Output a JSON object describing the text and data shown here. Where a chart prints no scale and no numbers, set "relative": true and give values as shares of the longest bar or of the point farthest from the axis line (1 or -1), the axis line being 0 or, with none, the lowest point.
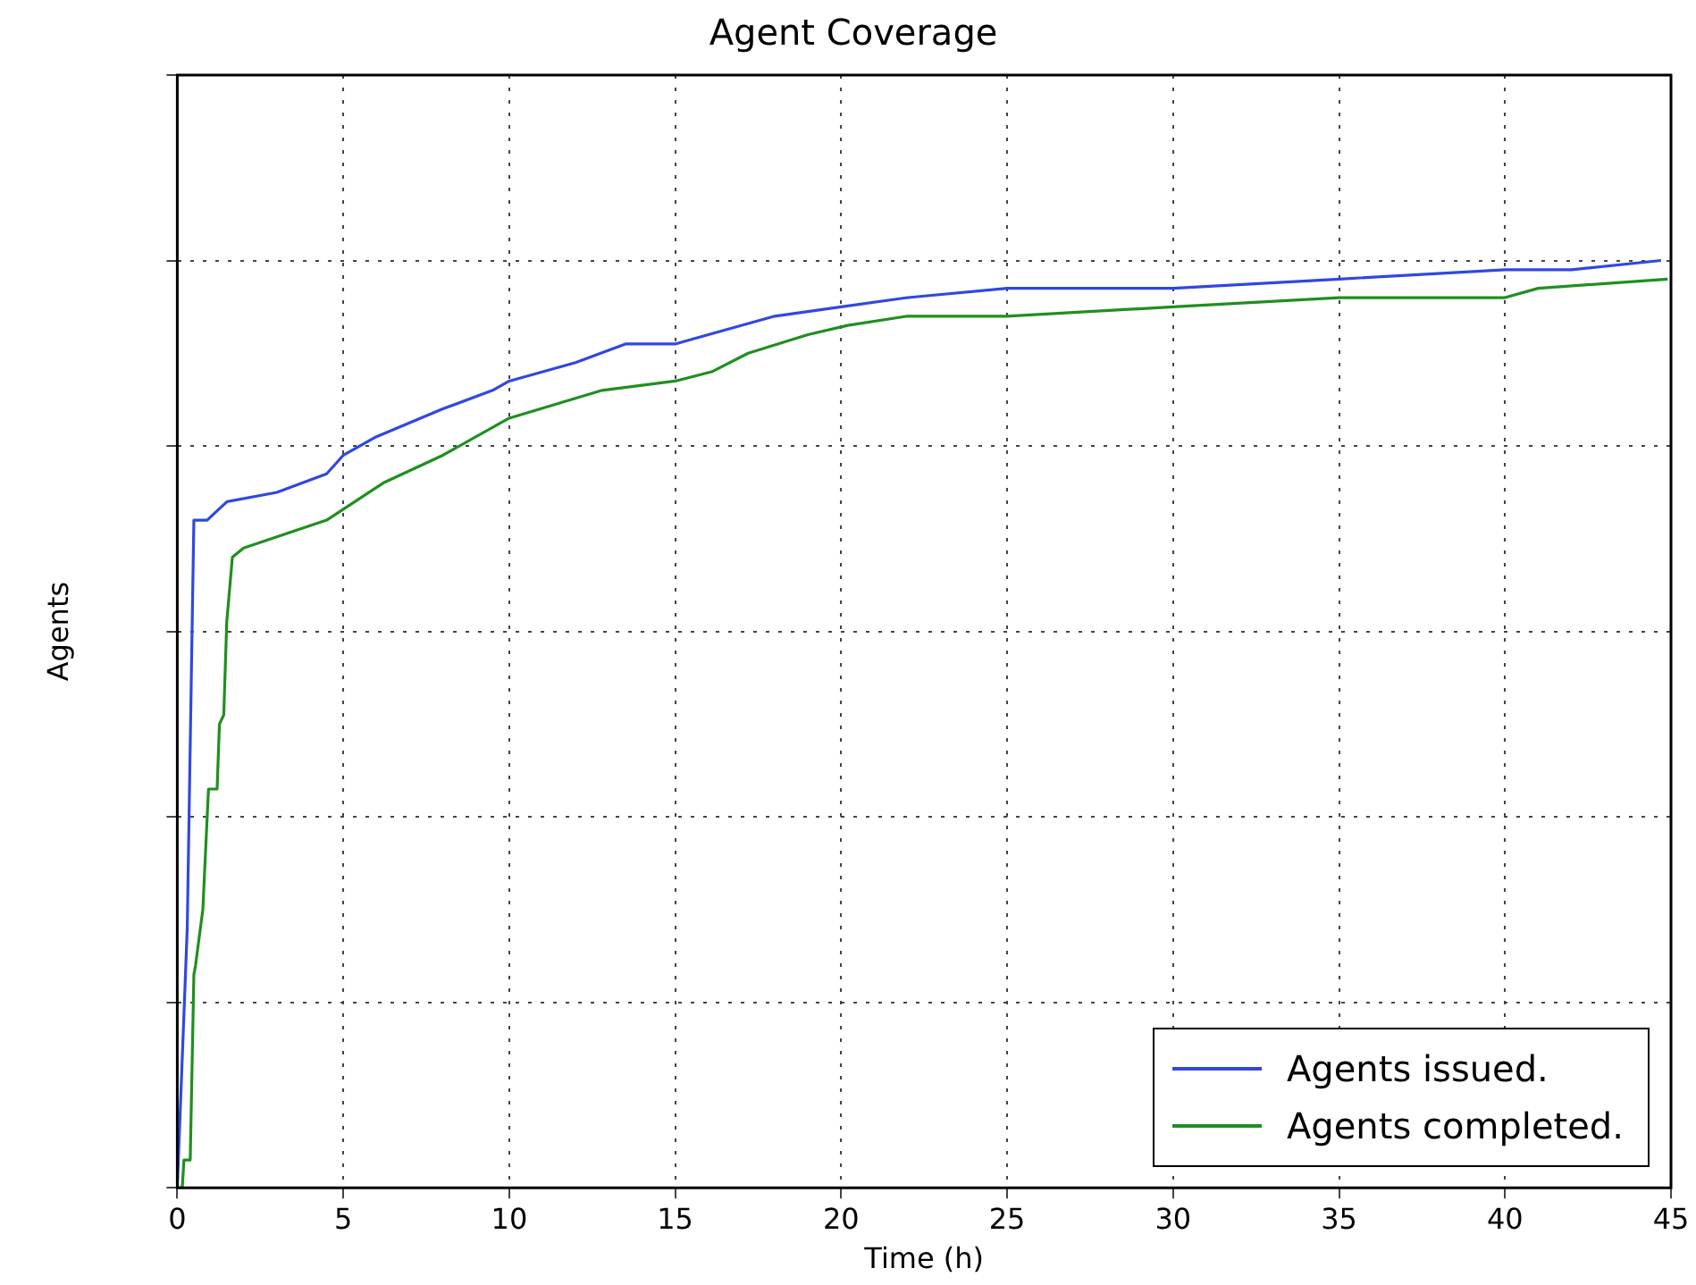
{
  "chart_data": {
    "type": "line",
    "title": "Agent Coverage",
    "xlabel": "Time (h)",
    "ylabel": "Agents",
    "relative": true,
    "xlim": [
      0,
      45
    ],
    "xticks": [
      0,
      5,
      10,
      15,
      20,
      25,
      30,
      35,
      40,
      45
    ],
    "grid": true,
    "legend": "bottom right",
    "marker": "none",
    "line_style": "solid",
    "series": [
      {
        "name": "Agents issued.",
        "color": "#3048e0",
        "x": [
          0,
          0.3,
          0.5,
          0.9,
          1.2,
          1.5,
          3,
          4.5,
          5,
          6,
          8,
          9.5,
          10,
          12,
          13.5,
          15,
          16,
          18,
          20,
          22,
          25,
          26,
          30,
          35,
          40,
          42,
          44.7
        ],
        "values": [
          0,
          0.28,
          0.72,
          0.72,
          0.73,
          0.74,
          0.75,
          0.77,
          0.79,
          0.81,
          0.84,
          0.86,
          0.87,
          0.89,
          0.91,
          0.91,
          0.92,
          0.94,
          0.95,
          0.96,
          0.97,
          0.97,
          0.97,
          0.98,
          0.99,
          0.99,
          1
        ]
      },
      {
        "name": "Agents completed.",
        "color": "#1f8f1f",
        "x": [
          0,
          0.15,
          0.2,
          0.39,
          0.5,
          0.55,
          0.77,
          0.94,
          1.2,
          1.27,
          1.4,
          1.49,
          1.66,
          2,
          4.5,
          6.2,
          8,
          10,
          12.8,
          15,
          16.1,
          17.2,
          19,
          20.2,
          22,
          25,
          30,
          35,
          40,
          41,
          44.9
        ],
        "values": [
          0,
          0,
          0.03,
          0.03,
          0.23,
          0.24,
          0.3,
          0.43,
          0.43,
          0.5,
          0.51,
          0.61,
          0.68,
          0.69,
          0.72,
          0.76,
          0.79,
          0.83,
          0.86,
          0.87,
          0.88,
          0.9,
          0.92,
          0.93,
          0.94,
          0.94,
          0.95,
          0.96,
          0.96,
          0.97,
          0.98
        ]
      }
    ]
  }
}
